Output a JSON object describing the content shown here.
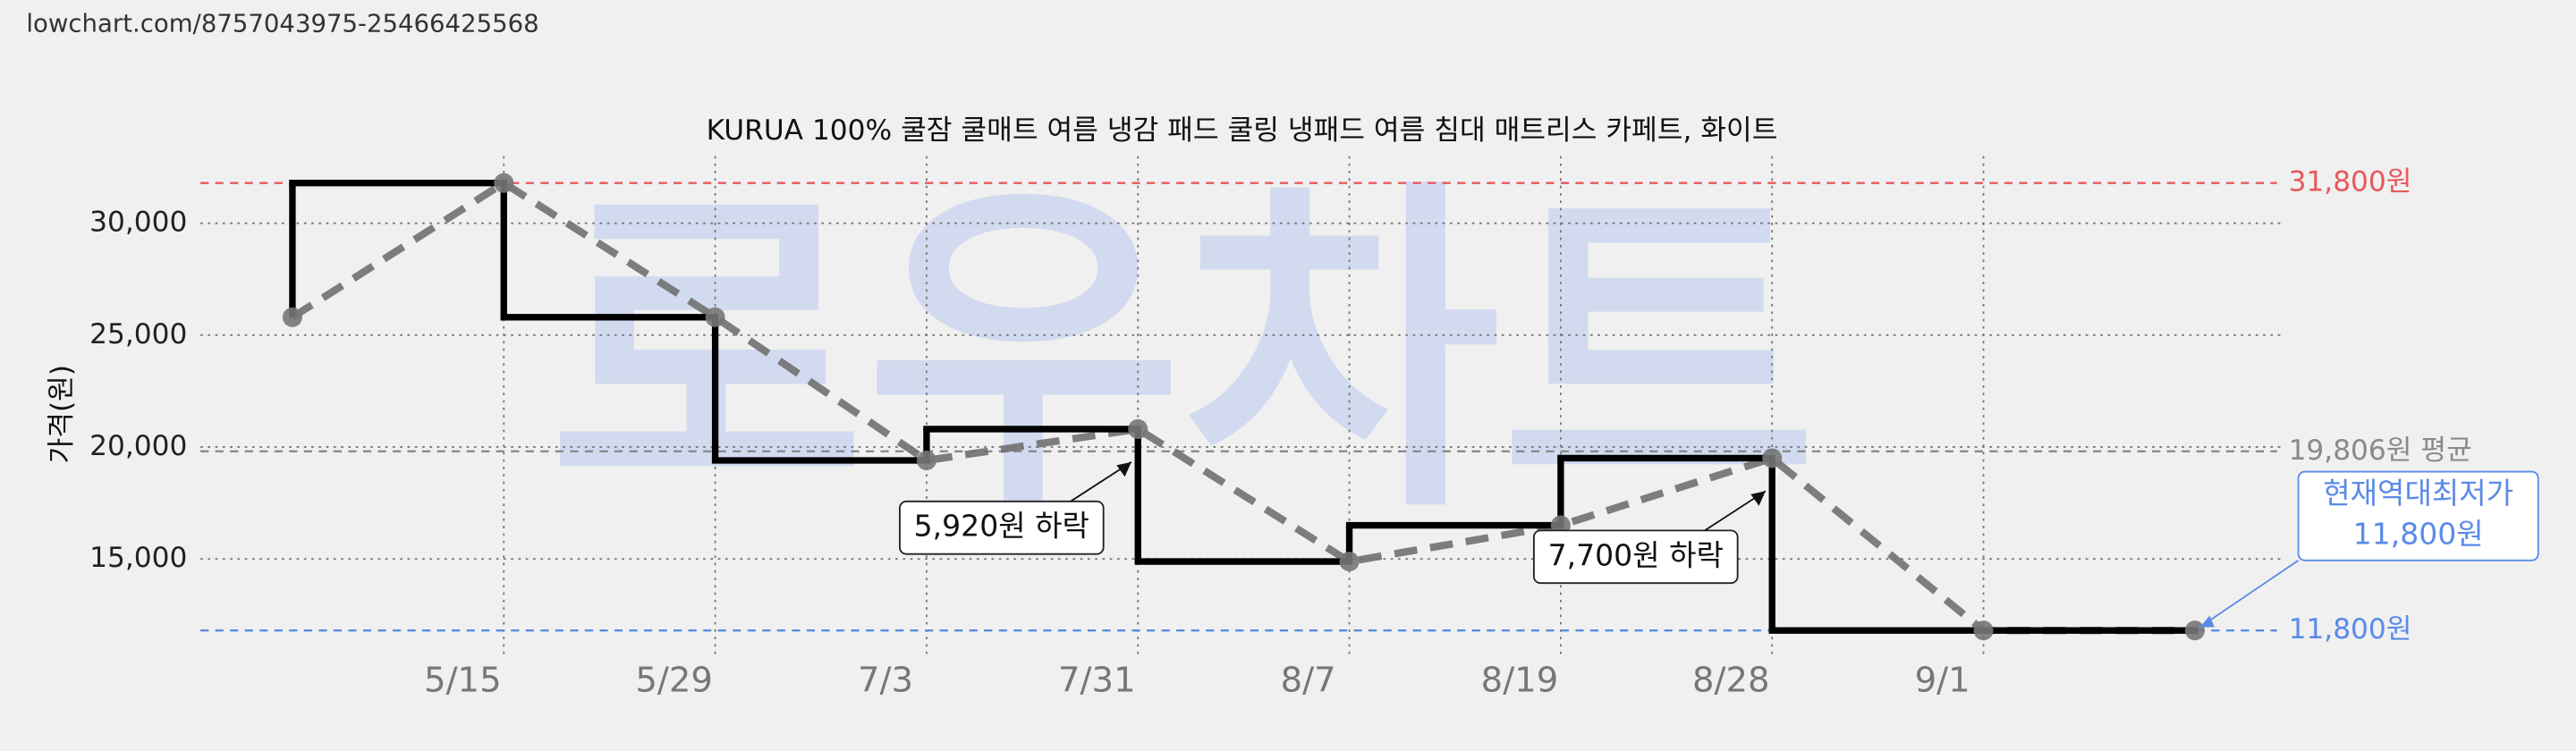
{
  "url": "lowchart.com/8757043975-25466425568",
  "chart_data": {
    "type": "step",
    "title": "KURUA 100% 쿨잠 쿨매트 여름 냉감 패드 쿨링 냉패드 여름 침대 매트리스 카페트, 화이트",
    "watermark": "로우차트",
    "y_label": "가격(원)",
    "categories": [
      null,
      "5/15",
      "5/29",
      "7/3",
      "7/31",
      "8/7",
      "8/19",
      "8/28",
      "9/1",
      null
    ],
    "series": [
      {
        "color": "#000000",
        "trend_color": "#707070",
        "values": [
          25800,
          31800,
          25800,
          19400,
          20800,
          14880,
          16500,
          19500,
          11800,
          11800
        ]
      }
    ],
    "ylim": [
      10600,
      33000
    ],
    "yticks": [
      {
        "value": 15000,
        "label": "15,000"
      },
      {
        "value": 20000,
        "label": "20,000"
      },
      {
        "value": 25000,
        "label": "25,000"
      },
      {
        "value": 30000,
        "label": "30,000"
      }
    ],
    "grid": true,
    "reference_lines": [
      {
        "value": 31800,
        "label": "31,800원",
        "color": "#e8595b"
      },
      {
        "value": 19806,
        "label": "19,806원 평균",
        "color": "#8a8a8a"
      },
      {
        "value": 11800,
        "label": "11,800원",
        "color": "#5b8ae8"
      }
    ],
    "annotations": [
      {
        "text": "5,920원 하락",
        "point": 4
      },
      {
        "text": "7,700원 하락",
        "point": 7
      },
      {
        "lines": [
          "현재역대최저가",
          "11,800원"
        ],
        "point": 9,
        "color": "#5b8ae8"
      }
    ]
  }
}
